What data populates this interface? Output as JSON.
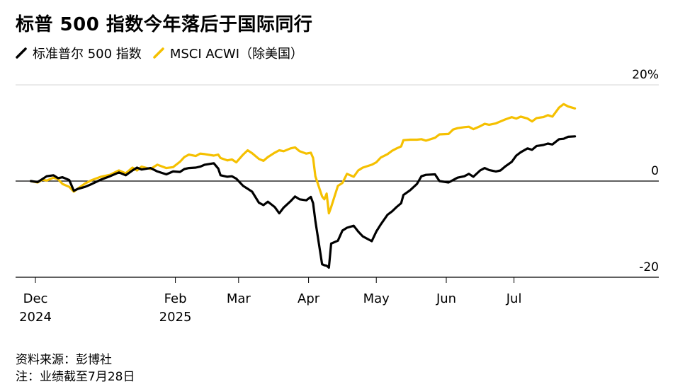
{
  "title": "标普 500 指数今年落后于国际同行",
  "source": "资料来源：彭博社",
  "note": "注：业绩截至7月28日",
  "chart_data": {
    "type": "line",
    "yunit": "%",
    "ylim": [
      -20,
      20
    ],
    "yticks": [
      {
        "value": 20,
        "label": "20%"
      },
      {
        "value": 0,
        "label": "0"
      },
      {
        "value": -20,
        "label": "-20"
      }
    ],
    "xticks": [
      {
        "date": "2024-12-01",
        "label1": "Dec",
        "label2": "2024"
      },
      {
        "date": "2025-02-01",
        "label1": "Feb",
        "label2": "2025"
      },
      {
        "date": "2025-03-01",
        "label1": "Mar",
        "label2": ""
      },
      {
        "date": "2025-04-01",
        "label1": "Apr",
        "label2": ""
      },
      {
        "date": "2025-05-01",
        "label1": "May",
        "label2": ""
      },
      {
        "date": "2025-06-01",
        "label1": "Jun",
        "label2": ""
      },
      {
        "date": "2025-07-01",
        "label1": "Jul",
        "label2": ""
      }
    ],
    "grid": true,
    "legend_position": "top-left",
    "series": [
      {
        "name": "MSCI ACWI（除美国）",
        "color": "#f5c000",
        "points": [
          [
            "2024-11-29",
            0
          ],
          [
            "2024-12-02",
            -0.3
          ],
          [
            "2024-12-04",
            0.3
          ],
          [
            "2024-12-06",
            0.1
          ],
          [
            "2024-12-09",
            0.7
          ],
          [
            "2024-12-11",
            0.4
          ],
          [
            "2024-12-13",
            -0.6
          ],
          [
            "2024-12-16",
            -1.2
          ],
          [
            "2024-12-18",
            -2.2
          ],
          [
            "2024-12-20",
            -1.5
          ],
          [
            "2024-12-23",
            -0.5
          ],
          [
            "2024-12-26",
            0.2
          ],
          [
            "2024-12-30",
            0.9
          ],
          [
            "2025-01-03",
            1.3
          ],
          [
            "2025-01-07",
            2.2
          ],
          [
            "2025-01-10",
            1.6
          ],
          [
            "2025-01-13",
            2.8
          ],
          [
            "2025-01-15",
            2.2
          ],
          [
            "2025-01-17",
            3.0
          ],
          [
            "2025-01-21",
            2.5
          ],
          [
            "2025-01-24",
            3.4
          ],
          [
            "2025-01-28",
            2.7
          ],
          [
            "2025-01-31",
            2.9
          ],
          [
            "2025-02-03",
            4.0
          ],
          [
            "2025-02-05",
            5.0
          ],
          [
            "2025-02-07",
            5.5
          ],
          [
            "2025-02-10",
            5.2
          ],
          [
            "2025-02-12",
            5.7
          ],
          [
            "2025-02-14",
            5.6
          ],
          [
            "2025-02-18",
            5.3
          ],
          [
            "2025-02-20",
            5.5
          ],
          [
            "2025-02-21",
            4.8
          ],
          [
            "2025-02-24",
            4.3
          ],
          [
            "2025-02-26",
            4.5
          ],
          [
            "2025-02-28",
            3.9
          ],
          [
            "2025-03-03",
            5.5
          ],
          [
            "2025-03-05",
            6.4
          ],
          [
            "2025-03-07",
            5.8
          ],
          [
            "2025-03-10",
            4.6
          ],
          [
            "2025-03-12",
            4.2
          ],
          [
            "2025-03-14",
            5.0
          ],
          [
            "2025-03-17",
            5.9
          ],
          [
            "2025-03-19",
            6.4
          ],
          [
            "2025-03-21",
            6.2
          ],
          [
            "2025-03-24",
            6.8
          ],
          [
            "2025-03-26",
            7.0
          ],
          [
            "2025-03-28",
            6.2
          ],
          [
            "2025-03-31",
            5.7
          ],
          [
            "2025-04-02",
            5.9
          ],
          [
            "2025-04-03",
            4.8
          ],
          [
            "2025-04-04",
            1.0
          ],
          [
            "2025-04-07",
            -3.2
          ],
          [
            "2025-04-08",
            -3.8
          ],
          [
            "2025-04-09",
            -2.6
          ],
          [
            "2025-04-10",
            -6.7
          ],
          [
            "2025-04-11",
            -5.4
          ],
          [
            "2025-04-14",
            -1.0
          ],
          [
            "2025-04-16",
            -0.4
          ],
          [
            "2025-04-18",
            1.5
          ],
          [
            "2025-04-21",
            0.9
          ],
          [
            "2025-04-23",
            2.2
          ],
          [
            "2025-04-25",
            2.8
          ],
          [
            "2025-04-29",
            3.4
          ],
          [
            "2025-05-01",
            3.9
          ],
          [
            "2025-05-03",
            4.9
          ],
          [
            "2025-05-06",
            5.6
          ],
          [
            "2025-05-08",
            6.3
          ],
          [
            "2025-05-10",
            6.8
          ],
          [
            "2025-05-12",
            7.2
          ],
          [
            "2025-05-13",
            8.5
          ],
          [
            "2025-05-16",
            8.6
          ],
          [
            "2025-05-19",
            8.6
          ],
          [
            "2025-05-21",
            8.7
          ],
          [
            "2025-05-23",
            8.4
          ],
          [
            "2025-05-27",
            9.0
          ],
          [
            "2025-05-29",
            9.7
          ],
          [
            "2025-06-02",
            9.8
          ],
          [
            "2025-06-04",
            10.7
          ],
          [
            "2025-06-06",
            11.0
          ],
          [
            "2025-06-09",
            11.2
          ],
          [
            "2025-06-11",
            11.3
          ],
          [
            "2025-06-13",
            10.8
          ],
          [
            "2025-06-16",
            11.4
          ],
          [
            "2025-06-18",
            11.9
          ],
          [
            "2025-06-20",
            11.7
          ],
          [
            "2025-06-23",
            12.0
          ],
          [
            "2025-06-25",
            12.4
          ],
          [
            "2025-06-27",
            12.8
          ],
          [
            "2025-06-30",
            13.3
          ],
          [
            "2025-07-02",
            13.0
          ],
          [
            "2025-07-04",
            13.4
          ],
          [
            "2025-07-07",
            13.0
          ],
          [
            "2025-07-09",
            12.4
          ],
          [
            "2025-07-11",
            13.1
          ],
          [
            "2025-07-14",
            13.3
          ],
          [
            "2025-07-16",
            13.7
          ],
          [
            "2025-07-18",
            13.4
          ],
          [
            "2025-07-21",
            15.3
          ],
          [
            "2025-07-23",
            16.0
          ],
          [
            "2025-07-25",
            15.5
          ],
          [
            "2025-07-28",
            15.1
          ]
        ]
      },
      {
        "name": "标准普尔 500 指数",
        "color": "#000000",
        "points": [
          [
            "2024-11-29",
            0
          ],
          [
            "2024-12-02",
            -0.2
          ],
          [
            "2024-12-04",
            0.4
          ],
          [
            "2024-12-06",
            1.0
          ],
          [
            "2024-12-09",
            1.2
          ],
          [
            "2024-12-11",
            0.6
          ],
          [
            "2024-12-13",
            0.8
          ],
          [
            "2024-12-16",
            0.2
          ],
          [
            "2024-12-18",
            -2.0
          ],
          [
            "2024-12-20",
            -1.6
          ],
          [
            "2024-12-23",
            -1.2
          ],
          [
            "2024-12-26",
            -0.6
          ],
          [
            "2024-12-30",
            0.3
          ],
          [
            "2025-01-03",
            1.0
          ],
          [
            "2025-01-07",
            1.8
          ],
          [
            "2025-01-10",
            1.2
          ],
          [
            "2025-01-13",
            2.2
          ],
          [
            "2025-01-15",
            2.8
          ],
          [
            "2025-01-17",
            2.4
          ],
          [
            "2025-01-21",
            2.7
          ],
          [
            "2025-01-24",
            2.0
          ],
          [
            "2025-01-28",
            1.4
          ],
          [
            "2025-01-31",
            2.0
          ],
          [
            "2025-02-03",
            1.9
          ],
          [
            "2025-02-05",
            2.5
          ],
          [
            "2025-02-07",
            2.7
          ],
          [
            "2025-02-10",
            2.8
          ],
          [
            "2025-02-12",
            3.0
          ],
          [
            "2025-02-14",
            3.4
          ],
          [
            "2025-02-18",
            3.7
          ],
          [
            "2025-02-20",
            2.6
          ],
          [
            "2025-02-21",
            1.2
          ],
          [
            "2025-02-24",
            0.9
          ],
          [
            "2025-02-26",
            1.0
          ],
          [
            "2025-02-28",
            0.5
          ],
          [
            "2025-03-03",
            -1.0
          ],
          [
            "2025-03-05",
            -1.6
          ],
          [
            "2025-03-07",
            -2.2
          ],
          [
            "2025-03-10",
            -4.5
          ],
          [
            "2025-03-12",
            -5.0
          ],
          [
            "2025-03-14",
            -4.3
          ],
          [
            "2025-03-17",
            -5.4
          ],
          [
            "2025-03-19",
            -6.7
          ],
          [
            "2025-03-21",
            -5.5
          ],
          [
            "2025-03-24",
            -4.2
          ],
          [
            "2025-03-26",
            -3.2
          ],
          [
            "2025-03-28",
            -3.8
          ],
          [
            "2025-03-31",
            -4.0
          ],
          [
            "2025-04-02",
            -3.3
          ],
          [
            "2025-04-03",
            -4.6
          ],
          [
            "2025-04-04",
            -8.3
          ],
          [
            "2025-04-07",
            -17.3
          ],
          [
            "2025-04-08",
            -17.5
          ],
          [
            "2025-04-09",
            -17.6
          ],
          [
            "2025-04-10",
            -18.0
          ],
          [
            "2025-04-11",
            -13.0
          ],
          [
            "2025-04-14",
            -12.4
          ],
          [
            "2025-04-16",
            -10.3
          ],
          [
            "2025-04-18",
            -9.7
          ],
          [
            "2025-04-21",
            -9.3
          ],
          [
            "2025-04-23",
            -10.5
          ],
          [
            "2025-04-25",
            -11.5
          ],
          [
            "2025-04-29",
            -12.5
          ],
          [
            "2025-05-01",
            -10.5
          ],
          [
            "2025-05-03",
            -9.0
          ],
          [
            "2025-05-06",
            -7.0
          ],
          [
            "2025-05-08",
            -6.3
          ],
          [
            "2025-05-10",
            -5.4
          ],
          [
            "2025-05-12",
            -4.6
          ],
          [
            "2025-05-13",
            -2.9
          ],
          [
            "2025-05-16",
            -1.9
          ],
          [
            "2025-05-19",
            -0.6
          ],
          [
            "2025-05-21",
            1.0
          ],
          [
            "2025-05-23",
            1.3
          ],
          [
            "2025-05-27",
            1.4
          ],
          [
            "2025-05-29",
            0.0
          ],
          [
            "2025-06-02",
            -0.3
          ],
          [
            "2025-06-04",
            0.2
          ],
          [
            "2025-06-06",
            0.7
          ],
          [
            "2025-06-09",
            1.0
          ],
          [
            "2025-06-11",
            1.5
          ],
          [
            "2025-06-13",
            0.9
          ],
          [
            "2025-06-16",
            2.2
          ],
          [
            "2025-06-18",
            2.7
          ],
          [
            "2025-06-20",
            2.3
          ],
          [
            "2025-06-23",
            2.0
          ],
          [
            "2025-06-25",
            2.2
          ],
          [
            "2025-06-27",
            3.0
          ],
          [
            "2025-06-30",
            4.0
          ],
          [
            "2025-07-02",
            5.3
          ],
          [
            "2025-07-04",
            6.0
          ],
          [
            "2025-07-07",
            6.8
          ],
          [
            "2025-07-09",
            6.5
          ],
          [
            "2025-07-11",
            7.3
          ],
          [
            "2025-07-14",
            7.5
          ],
          [
            "2025-07-16",
            7.8
          ],
          [
            "2025-07-18",
            7.6
          ],
          [
            "2025-07-21",
            8.7
          ],
          [
            "2025-07-23",
            8.8
          ],
          [
            "2025-07-25",
            9.2
          ],
          [
            "2025-07-28",
            9.3
          ]
        ]
      }
    ]
  }
}
